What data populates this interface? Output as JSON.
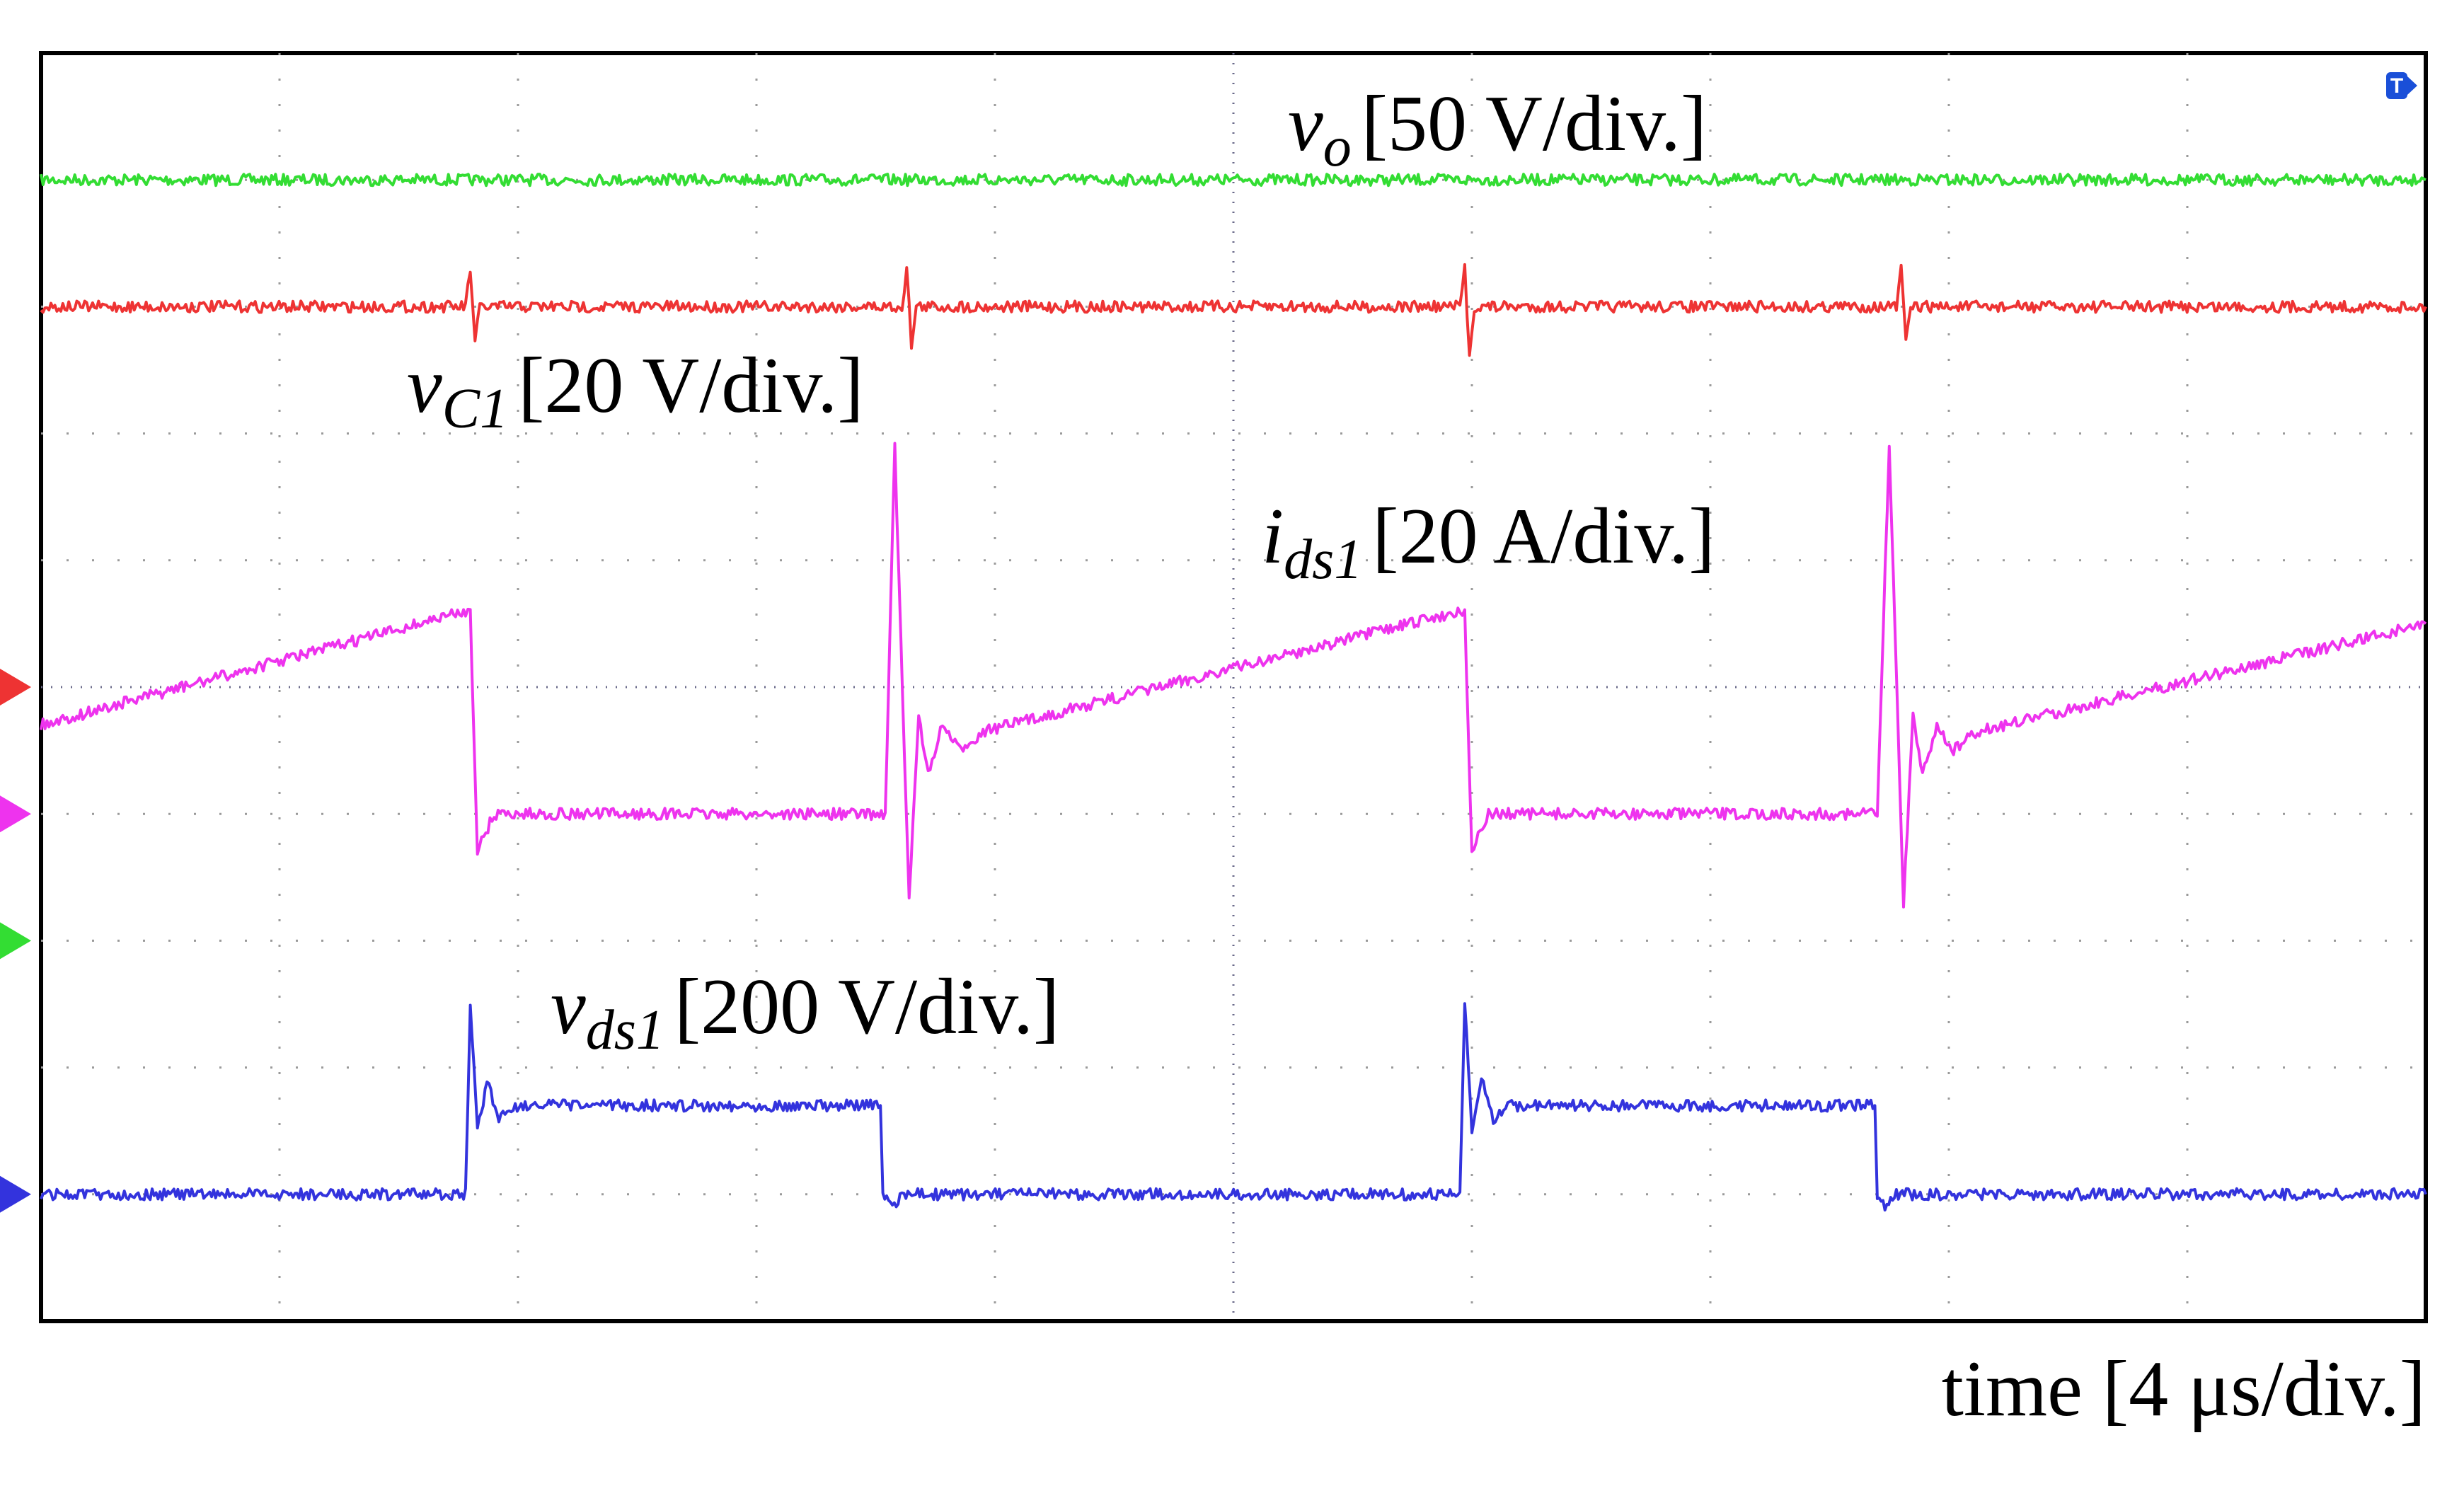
{
  "chart_data": {
    "type": "line",
    "title": "",
    "xlabel": "time [4 μs/div.]",
    "ylabel": "",
    "grid": true,
    "grid_divisions": {
      "x": 10,
      "y": 10
    },
    "x_unit": "div",
    "xlim": [
      0,
      10
    ],
    "ylim": [
      -5,
      5
    ],
    "trigger_marker": "T",
    "channel_labels": {
      "vo": {
        "var": "v",
        "sub": "o",
        "scale": "[50 V/div.]"
      },
      "vC1": {
        "var": "v",
        "sub": "C1",
        "scale": "[20 V/div.]"
      },
      "ids1": {
        "var": "i",
        "sub": "ds1",
        "scale": "[20 A/div.]"
      },
      "vds1": {
        "var": "v",
        "sub": "ds1",
        "scale": "[200 V/div.]"
      }
    },
    "series": [
      {
        "id": "vo",
        "color": "#33dd33",
        "ground_level_div": -2.0,
        "x": [
          0,
          10
        ],
        "y": [
          4.0,
          4.0
        ]
      },
      {
        "id": "vC1",
        "color": "#ee3333",
        "ground_level_div": 0.0,
        "x": [
          0,
          1.78,
          1.8,
          1.82,
          1.84,
          3.61,
          3.63,
          3.65,
          3.67,
          5.95,
          5.97,
          5.99,
          6.01,
          7.78,
          7.8,
          7.82,
          7.84,
          10
        ],
        "y": [
          3.0,
          3.0,
          3.3,
          2.7,
          3.0,
          3.0,
          3.3,
          2.7,
          3.0,
          3.0,
          3.3,
          2.6,
          3.0,
          3.0,
          3.3,
          2.7,
          3.0,
          3.0
        ]
      },
      {
        "id": "ids1",
        "color": "#ee33ee",
        "ground_level_div": -1.0,
        "x": [
          0,
          1.78,
          1.8,
          1.83,
          1.9,
          3.54,
          3.58,
          3.64,
          3.68,
          3.72,
          3.78,
          3.85,
          3.95,
          5.95,
          5.97,
          6.0,
          6.07,
          7.7,
          7.75,
          7.81,
          7.85,
          7.89,
          7.95,
          8.02,
          8.12,
          10
        ],
        "y": [
          -0.3,
          0.6,
          0.6,
          -1.3,
          -1.0,
          -1.0,
          1.9,
          -1.7,
          -0.2,
          -0.7,
          -0.3,
          -0.5,
          -0.35,
          0.6,
          0.6,
          -1.3,
          -1.0,
          -1.0,
          1.9,
          -1.7,
          -0.2,
          -0.7,
          -0.3,
          -0.5,
          -0.35,
          0.5
        ]
      },
      {
        "id": "vds1",
        "color": "#3333dd",
        "ground_level_div": -4.0,
        "x": [
          0,
          1.78,
          1.8,
          1.83,
          1.87,
          1.92,
          1.98,
          3.52,
          3.53,
          3.57,
          3.61,
          5.95,
          5.97,
          6.0,
          6.04,
          6.09,
          6.15,
          7.69,
          7.7,
          7.74,
          7.78,
          10
        ],
        "y": [
          -4.0,
          -4.0,
          -2.5,
          -3.5,
          -3.1,
          -3.4,
          -3.3,
          -3.3,
          -4.0,
          -4.1,
          -4.0,
          -4.0,
          -2.5,
          -3.5,
          -3.1,
          -3.4,
          -3.3,
          -3.3,
          -4.0,
          -4.1,
          -4.0,
          -4.0
        ]
      }
    ]
  }
}
